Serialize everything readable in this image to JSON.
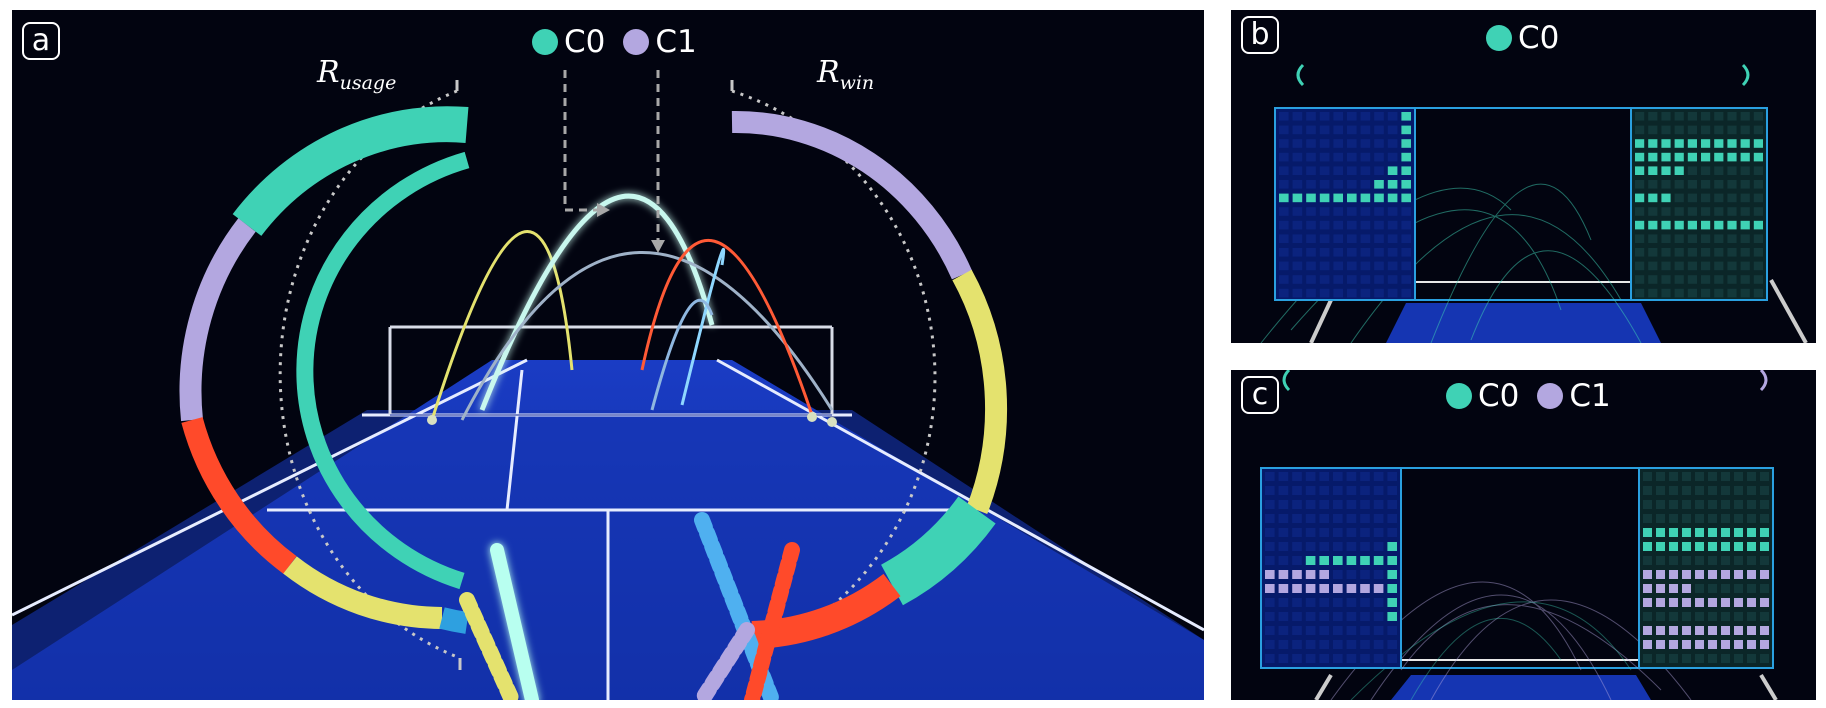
{
  "colors": {
    "c0": "#3fd2b5",
    "c1": "#b3a7e0",
    "red": "#ff4a2a",
    "yellow": "#e4e26e",
    "blue": "#2ea0e0",
    "court": "#1432a8",
    "background": "#020410"
  },
  "panels": [
    {
      "label": "a",
      "legend": [
        {
          "name": "C0",
          "color_key": "c0"
        },
        {
          "name": "C1",
          "color_key": "c1"
        }
      ],
      "ring_labels": {
        "usage_main": "R",
        "usage_sub": "usage",
        "win_main": "R",
        "win_sub": "win"
      }
    },
    {
      "label": "b",
      "legend": [
        {
          "name": "C0",
          "color_key": "c0"
        }
      ]
    },
    {
      "label": "c",
      "legend": [
        {
          "name": "C0",
          "color_key": "c0"
        },
        {
          "name": "C1",
          "color_key": "c1"
        }
      ]
    }
  ],
  "icons": [
    "court-scene",
    "usage-ring",
    "win-ring",
    "trajectory-arcs",
    "heatmap-grid"
  ]
}
